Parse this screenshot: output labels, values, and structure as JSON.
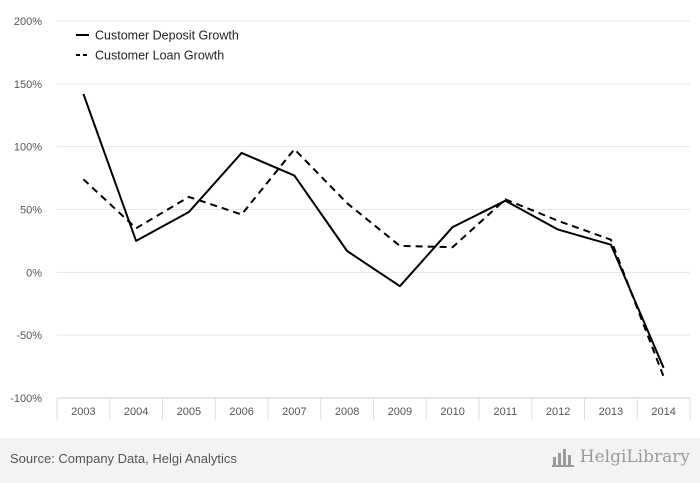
{
  "chart_data": {
    "type": "line",
    "x": [
      "2003",
      "2004",
      "2005",
      "2006",
      "2007",
      "2008",
      "2009",
      "2010",
      "2011",
      "2012",
      "2013",
      "2014"
    ],
    "series": [
      {
        "name": "Customer Deposit Growth",
        "style": "solid",
        "values": [
          142,
          25,
          48,
          95,
          77,
          17,
          -11,
          36,
          57,
          34,
          22,
          -76
        ]
      },
      {
        "name": "Customer Loan Growth",
        "style": "dashed",
        "values": [
          74,
          35,
          60,
          46,
          98,
          55,
          21,
          20,
          58,
          41,
          26,
          -83
        ]
      }
    ],
    "yticks": [
      "200%",
      "150%",
      "100%",
      "50%",
      "0%",
      "-50%",
      "-100%"
    ],
    "ylim": [
      -100,
      200
    ],
    "ytick_values": [
      200,
      150,
      100,
      50,
      0,
      -50,
      -100
    ],
    "grid": true,
    "legend_position": "top-left",
    "title": "",
    "xlabel": "",
    "ylabel": "",
    "colors": {
      "line": "#000000",
      "grid": "#e6e6e6",
      "axis_text": "#555555",
      "footer_bg": "#f3f3f3"
    }
  },
  "footer": {
    "source": "Source: Company Data, Helgi Analytics",
    "brand": "HelgiLibrary",
    "brand_logo_icon": "bar-chart-logo-icon"
  }
}
